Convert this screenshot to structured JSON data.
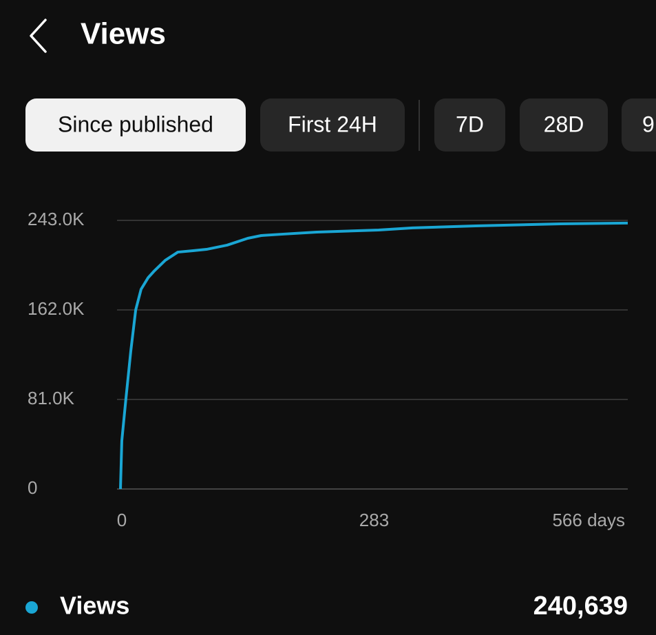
{
  "header": {
    "title": "Views"
  },
  "tabs": [
    "Since published",
    "First 24H",
    "7D",
    "28D",
    "9"
  ],
  "chart_data": {
    "type": "line",
    "x": [
      0,
      1.5,
      6,
      11.5,
      17,
      23,
      31,
      38,
      50,
      64,
      81,
      96,
      119,
      142,
      157,
      180,
      219,
      288,
      326,
      396,
      491,
      566
    ],
    "series": [
      {
        "name": "Views",
        "color": "#1aa6d4",
        "values": [
          0,
          43600,
          81000,
          124600,
          162000,
          180700,
          191300,
          197500,
          206900,
          214300,
          215600,
          216800,
          220600,
          226800,
          229300,
          230500,
          232400,
          234300,
          236200,
          238000,
          239900,
          240600
        ]
      }
    ],
    "xlim": [
      0,
      566
    ],
    "xticks": [
      0,
      283,
      {
        "value": 566,
        "label": "566 days"
      }
    ],
    "ylim": [
      0,
      243000
    ],
    "yticks": [
      0,
      {
        "value": 81000,
        "label": "81.0K"
      },
      {
        "value": 162000,
        "label": "162.0K"
      },
      {
        "value": 243000,
        "label": "243.0K"
      }
    ],
    "grid": true
  },
  "summary": {
    "value": "240,639"
  }
}
